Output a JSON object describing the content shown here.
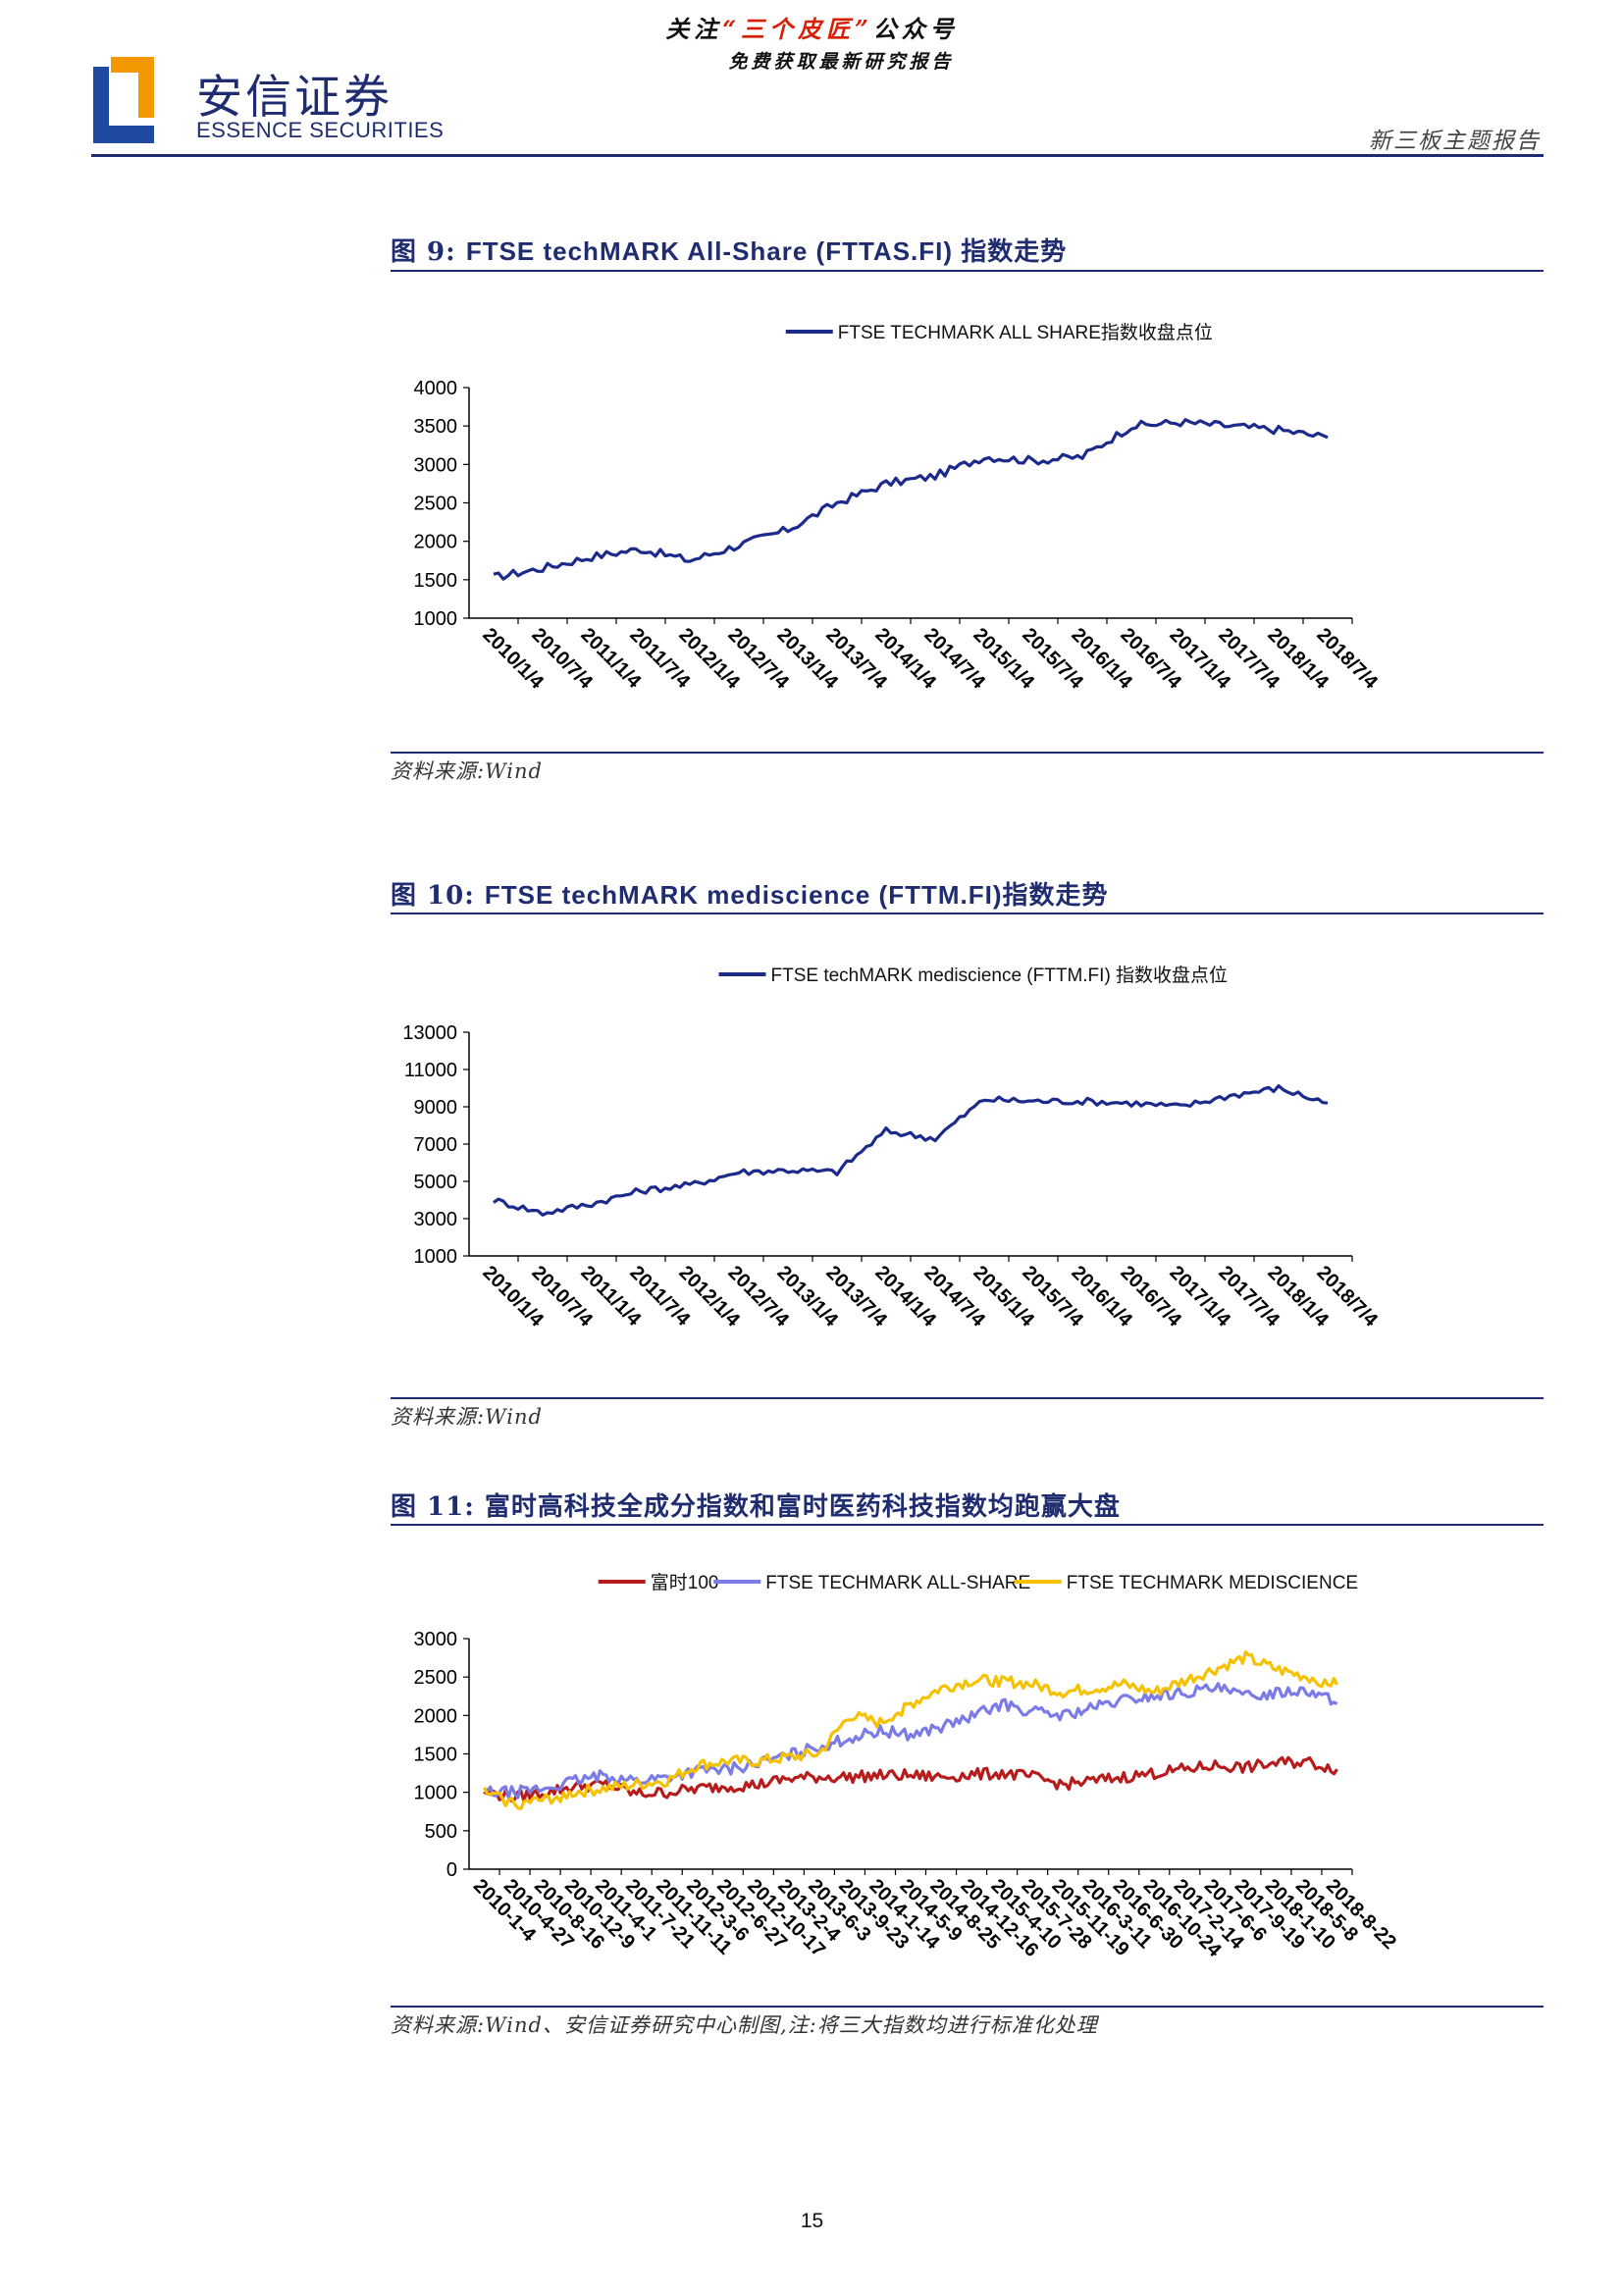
{
  "header": {
    "promo_prefix": "关注",
    "promo_highlight": "“三个皮匠”",
    "promo_suffix": "公众号",
    "promo_line2": "免费获取最新研究报告",
    "logo_cn": "安信证券",
    "logo_en": "ESSENCE SECURITIES",
    "report_type": "新三板主题报告"
  },
  "colors": {
    "brand": "#1f2d70",
    "series_dark_blue": "#1c2a8c",
    "series_red": "#b71c1c",
    "series_lavender": "#7b7be8",
    "series_gold": "#f5c100",
    "promo_highlight": "#d81e06"
  },
  "figures": [
    {
      "id": "fig9",
      "label": "图 9:",
      "title": "FTSE techMARK All-Share (FTTAS.FI) 指数走势",
      "source": "资料来源:Wind"
    },
    {
      "id": "fig10",
      "label": "图 10:",
      "title": "FTSE techMARK mediscience (FTTM.FI)指数走势",
      "source": "资料来源:Wind"
    },
    {
      "id": "fig11",
      "label": "图 11:",
      "title": "富时高科技全成分指数和富时医药科技指数均跑赢大盘",
      "source": "资料来源:Wind、安信证券研究中心制图,注:将三大指数均进行标准化处理"
    }
  ],
  "chart_data": [
    {
      "type": "line",
      "categories": [
        "2010/1/4",
        "2010/7/4",
        "2011/1/4",
        "2011/7/4",
        "2012/1/4",
        "2012/7/4",
        "2013/1/4",
        "2013/7/4",
        "2014/1/4",
        "2014/7/4",
        "2015/1/4",
        "2015/7/4",
        "2016/1/4",
        "2016/7/4",
        "2017/1/4",
        "2017/7/4",
        "2018/1/4",
        "2018/7/4"
      ],
      "ylim": [
        1000,
        4000
      ],
      "yticks": [
        1000,
        1500,
        2000,
        2500,
        3000,
        3500,
        4000
      ],
      "legend_position": "top-center",
      "series": [
        {
          "name": "FTSE TECHMARK ALL SHARE指数收盘点位",
          "color": "#1c2a8c",
          "values": [
            1530,
            1650,
            1800,
            1900,
            1750,
            1950,
            2150,
            2500,
            2750,
            2850,
            3100,
            3050,
            3100,
            3500,
            3550,
            3500,
            3450,
            3350
          ]
        }
      ]
    },
    {
      "type": "line",
      "categories": [
        "2010/1/4",
        "2010/7/4",
        "2011/1/4",
        "2011/7/4",
        "2012/1/4",
        "2012/7/4",
        "2013/1/4",
        "2013/7/4",
        "2014/1/4",
        "2014/7/4",
        "2015/1/4",
        "2015/7/4",
        "2016/1/4",
        "2016/7/4",
        "2017/1/4",
        "2017/7/4",
        "2018/1/4",
        "2018/7/4"
      ],
      "ylim": [
        1000,
        13000
      ],
      "yticks": [
        1000,
        3000,
        5000,
        7000,
        9000,
        11000,
        13000
      ],
      "legend_position": "top-center",
      "series": [
        {
          "name": "FTSE techMARK mediscience (FTTM.FI) 指数收盘点位",
          "color": "#1c2a8c",
          "values": [
            4000,
            3300,
            3800,
            4500,
            4800,
            5500,
            5600,
            5500,
            7700,
            7300,
            9400,
            9300,
            9300,
            9200,
            9000,
            9600,
            10000,
            9200
          ]
        }
      ]
    },
    {
      "type": "line",
      "categories": [
        "2010-1-4",
        "2010-4-27",
        "2010-8-16",
        "2010-12-9",
        "2011-4-1",
        "2011-7-21",
        "2011-11-11",
        "2012-3-6",
        "2012-6-27",
        "2012-10-17",
        "2013-2-4",
        "2013-6-3",
        "2013-9-23",
        "2014-1-14",
        "2014-5-9",
        "2014-8-25",
        "2014-12-16",
        "2015-4-10",
        "2015-7-28",
        "2015-11-19",
        "2016-3-11",
        "2016-6-30",
        "2016-10-24",
        "2017-2-14",
        "2017-6-6",
        "2017-9-19",
        "2018-1-10",
        "2018-5-8",
        "2018-8-22"
      ],
      "ylim": [
        0,
        3000
      ],
      "yticks": [
        0,
        500,
        1000,
        1500,
        2000,
        2500,
        3000
      ],
      "legend_position": "top-center",
      "series": [
        {
          "name": "富时100",
          "color": "#b71c1c",
          "values": [
            1000,
            940,
            1000,
            1080,
            1100,
            980,
            1000,
            1050,
            1080,
            1100,
            1180,
            1200,
            1200,
            1220,
            1220,
            1200,
            1230,
            1250,
            1200,
            1100,
            1150,
            1200,
            1250,
            1300,
            1350,
            1320,
            1380,
            1400,
            1300
          ]
        },
        {
          "name": "FTSE TECHMARK ALL-SHARE",
          "color": "#7b7be8",
          "values": [
            1000,
            1000,
            1050,
            1150,
            1220,
            1150,
            1200,
            1280,
            1300,
            1380,
            1480,
            1600,
            1700,
            1800,
            1750,
            1850,
            1980,
            2150,
            2050,
            2000,
            2100,
            2200,
            2250,
            2300,
            2350,
            2250,
            2300,
            2350,
            2150
          ]
        },
        {
          "name": "FTSE TECHMARK MEDISCIENCE",
          "color": "#f5c100",
          "values": [
            1000,
            850,
            900,
            1000,
            1050,
            1100,
            1150,
            1350,
            1400,
            1400,
            1450,
            1500,
            2000,
            1900,
            2150,
            2350,
            2450,
            2450,
            2400,
            2300,
            2350,
            2400,
            2300,
            2450,
            2600,
            2750,
            2600,
            2500,
            2400
          ]
        }
      ]
    }
  ],
  "page": {
    "number": "15"
  }
}
